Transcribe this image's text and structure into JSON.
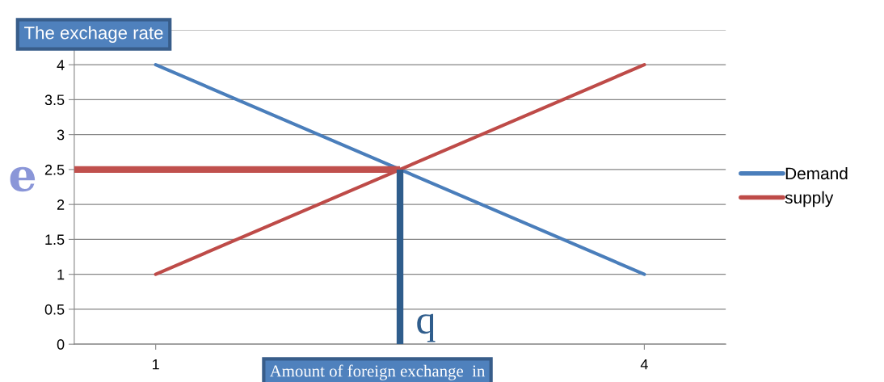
{
  "chart_data": {
    "type": "line",
    "ylabel": "The exchage rate",
    "xlabel": "Amount of foreign exchange  in",
    "x": [
      1,
      2,
      3,
      4
    ],
    "xlim": [
      0.5,
      4.5
    ],
    "xticks": [
      1,
      4
    ],
    "ylim": [
      0,
      4.5
    ],
    "yticks": [
      0,
      0.5,
      1,
      1.5,
      2,
      2.5,
      3,
      3.5,
      4,
      {
        "value": 4.5,
        "label": null
      }
    ],
    "series": [
      {
        "name": "Demand",
        "color": "#4a7ebb",
        "values": [
          4,
          3,
          2,
          1
        ]
      },
      {
        "name": "supply",
        "color": "#be4b48",
        "values": [
          1,
          2,
          3,
          4
        ]
      }
    ],
    "ref_lines": [
      {
        "axis": "y",
        "value": 2.5,
        "label": "e",
        "color": "#c0504d"
      },
      {
        "axis": "x",
        "value": 2.5,
        "label": "q",
        "color": "#2f5d8c"
      }
    ],
    "grid": "y",
    "legend": "right"
  }
}
